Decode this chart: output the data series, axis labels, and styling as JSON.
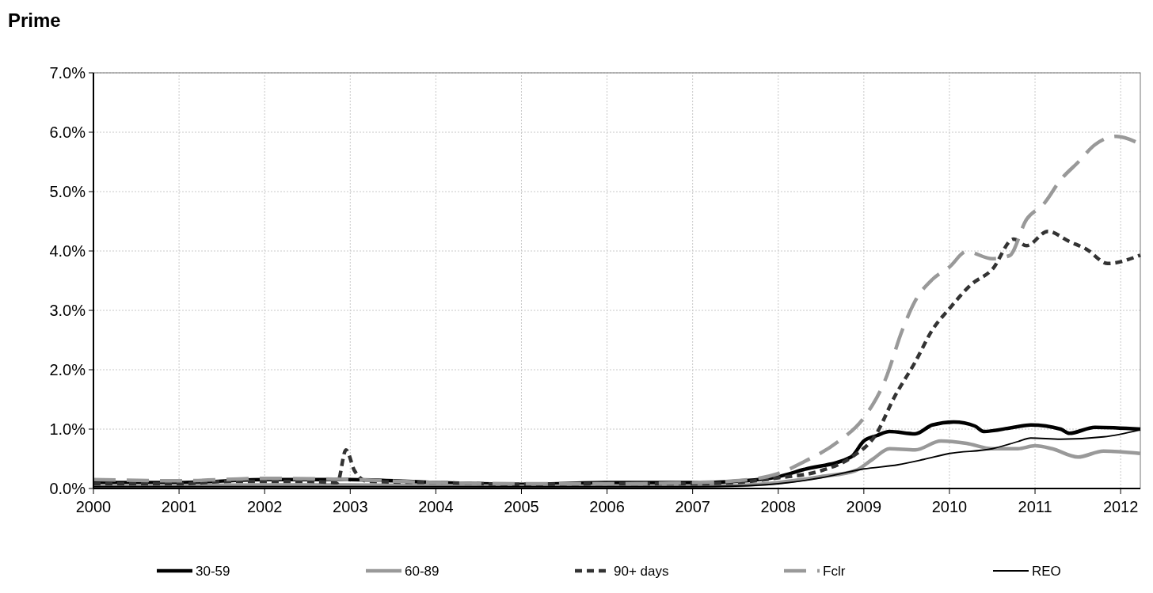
{
  "chart_data": {
    "type": "line",
    "title": "Prime",
    "legend": "bottom",
    "grid": true,
    "xlim": [
      2000,
      2012.23
    ],
    "xticks": [
      2000,
      2001,
      2002,
      2003,
      2004,
      2005,
      2006,
      2007,
      2008,
      2009,
      2010,
      2011,
      2012
    ],
    "ylim": [
      0,
      7
    ],
    "yticks": [
      {
        "value": 0,
        "label": "0.0%"
      },
      {
        "value": 1,
        "label": "1.0%"
      },
      {
        "value": 2,
        "label": "2.0%"
      },
      {
        "value": 3,
        "label": "3.0%"
      },
      {
        "value": 4,
        "label": "4.0%"
      },
      {
        "value": 5,
        "label": "5.0%"
      },
      {
        "value": 6,
        "label": "6.0%"
      },
      {
        "value": 7,
        "label": "7.0%"
      }
    ],
    "series": [
      {
        "name": "30-59",
        "color": "#000000",
        "line_style": "solid",
        "x": [
          2000,
          2001,
          2002,
          2003,
          2004,
          2005,
          2006,
          2007,
          2007.5,
          2008,
          2008.3,
          2008.85,
          2009,
          2009.15,
          2009.3,
          2009.6,
          2009.8,
          2010.05,
          2010.3,
          2010.4,
          2010.75,
          2010.95,
          2011.3,
          2011.4,
          2011.7,
          2012.23
        ],
        "values": [
          0.1,
          0.1,
          0.15,
          0.15,
          0.1,
          0.07,
          0.1,
          0.1,
          0.12,
          0.2,
          0.32,
          0.53,
          0.8,
          0.89,
          0.96,
          0.92,
          1.07,
          1.12,
          1.05,
          0.96,
          1.03,
          1.07,
          1.0,
          0.93,
          1.03,
          1.0
        ]
      },
      {
        "name": "60-89",
        "color": "#999999",
        "line_style": "solid",
        "x": [
          2000,
          2001,
          2002,
          2003,
          2004,
          2005,
          2006,
          2007,
          2007.5,
          2008,
          2008.5,
          2008.9,
          2009.1,
          2009.3,
          2009.6,
          2009.9,
          2010.2,
          2010.5,
          2010.8,
          2011,
          2011.2,
          2011.5,
          2011.8,
          2012.23
        ],
        "values": [
          0.05,
          0.05,
          0.06,
          0.06,
          0.05,
          0.04,
          0.04,
          0.04,
          0.05,
          0.1,
          0.2,
          0.3,
          0.49,
          0.67,
          0.65,
          0.8,
          0.76,
          0.67,
          0.67,
          0.72,
          0.67,
          0.53,
          0.63,
          0.59
        ]
      },
      {
        "name": "90+ days",
        "color": "#333333",
        "line_style": "dashed",
        "x": [
          2000,
          2001,
          2001.6,
          2002,
          2002.5,
          2002.85,
          2002.95,
          2003.05,
          2003.2,
          2004,
          2005,
          2006,
          2007,
          2007.5,
          2008,
          2008.5,
          2008.85,
          2009.15,
          2009.35,
          2009.6,
          2009.8,
          2010,
          2010.25,
          2010.5,
          2010.75,
          2010.9,
          2011.15,
          2011.4,
          2011.6,
          2011.85,
          2012.23
        ],
        "values": [
          0.08,
          0.08,
          0.12,
          0.12,
          0.12,
          0.1,
          0.65,
          0.3,
          0.12,
          0.1,
          0.07,
          0.08,
          0.08,
          0.1,
          0.18,
          0.3,
          0.52,
          0.93,
          1.52,
          2.13,
          2.67,
          3.03,
          3.43,
          3.69,
          4.2,
          4.09,
          4.33,
          4.16,
          4.03,
          3.79,
          3.93
        ]
      },
      {
        "name": "Fclr",
        "color": "#999999",
        "line_style": "dashed",
        "x": [
          2000,
          2001,
          2002,
          2003,
          2004,
          2005,
          2006,
          2007,
          2007.5,
          2008,
          2008.3,
          2008.7,
          2009,
          2009.25,
          2009.45,
          2009.6,
          2009.8,
          2010,
          2010.2,
          2010.5,
          2010.7,
          2010.9,
          2011.1,
          2011.3,
          2011.5,
          2011.7,
          2011.95,
          2012.23
        ],
        "values": [
          0.15,
          0.13,
          0.17,
          0.15,
          0.1,
          0.08,
          0.08,
          0.1,
          0.13,
          0.25,
          0.45,
          0.79,
          1.19,
          1.83,
          2.67,
          3.16,
          3.52,
          3.73,
          3.99,
          3.87,
          3.92,
          4.53,
          4.79,
          5.2,
          5.49,
          5.79,
          5.93,
          5.8
        ]
      },
      {
        "name": "REO",
        "color": "#000000",
        "line_style": "solid",
        "x": [
          2000,
          2001,
          2002,
          2003,
          2004,
          2005,
          2006,
          2007,
          2007.5,
          2008,
          2008.5,
          2009,
          2009.4,
          2009.7,
          2010,
          2010.5,
          2010.8,
          2010.95,
          2011.3,
          2011.8,
          2012.23
        ],
        "values": [
          0.03,
          0.03,
          0.03,
          0.03,
          0.03,
          0.03,
          0.03,
          0.03,
          0.04,
          0.08,
          0.18,
          0.33,
          0.4,
          0.49,
          0.59,
          0.67,
          0.79,
          0.85,
          0.83,
          0.87,
          0.99
        ]
      }
    ]
  }
}
